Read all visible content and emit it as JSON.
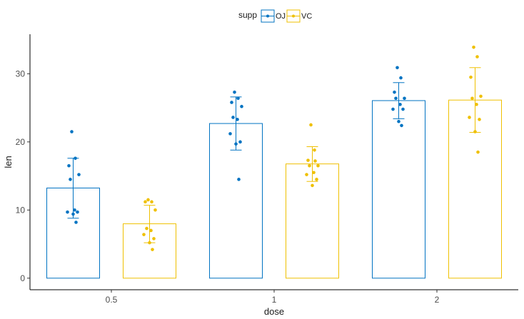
{
  "chart_data": {
    "type": "bar",
    "xlabel": "dose",
    "ylabel": "len",
    "categories": [
      "0.5",
      "1",
      "2"
    ],
    "ylim": [
      -1.7,
      35.8
    ],
    "yticks": [
      0,
      10,
      20,
      30
    ],
    "legend": {
      "title": "supp",
      "position": "top"
    },
    "grid": false,
    "series": [
      {
        "name": "OJ",
        "color": "#0073C2",
        "values": [
          13.23,
          22.7,
          26.06
        ],
        "error": [
          [
            8.8,
            17.6
          ],
          [
            18.8,
            26.6
          ],
          [
            23.4,
            28.7
          ]
        ],
        "points": [
          [
            21.5,
            17.6,
            16.5,
            15.2,
            14.5,
            10.0,
            9.7,
            9.7,
            9.4,
            8.2
          ],
          [
            27.3,
            26.4,
            25.8,
            25.2,
            23.6,
            23.3,
            21.2,
            20.0,
            19.7,
            14.5
          ],
          [
            30.9,
            29.4,
            27.3,
            26.4,
            26.4,
            25.5,
            24.8,
            24.8,
            23.0,
            22.4
          ]
        ]
      },
      {
        "name": "VC",
        "color": "#EFC000",
        "values": [
          7.98,
          16.77,
          26.14
        ],
        "error": [
          [
            5.2,
            10.7
          ],
          [
            14.2,
            19.3
          ],
          [
            21.4,
            30.9
          ]
        ],
        "points": [
          [
            11.5,
            11.2,
            11.2,
            10.0,
            7.3,
            7.0,
            6.4,
            5.8,
            5.2,
            4.2
          ],
          [
            22.5,
            18.8,
            17.3,
            16.5,
            16.5,
            15.5,
            15.2,
            14.5,
            13.6,
            17.2
          ],
          [
            33.9,
            32.5,
            29.5,
            26.7,
            26.4,
            25.5,
            23.6,
            23.3,
            21.5,
            18.5
          ]
        ]
      }
    ]
  }
}
